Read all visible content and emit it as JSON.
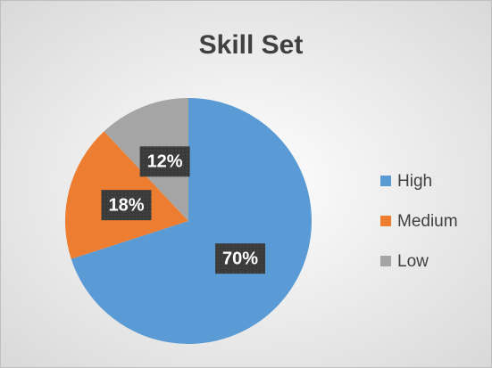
{
  "chart_data": {
    "type": "pie",
    "title": "Skill Set",
    "categories": [
      "High",
      "Medium",
      "Low"
    ],
    "values": [
      70,
      18,
      12
    ],
    "value_labels": [
      "70%",
      "18%",
      "12%"
    ],
    "colors": [
      "#5b9bd5",
      "#ed7d31",
      "#a5a5a5"
    ],
    "legend": "right"
  }
}
